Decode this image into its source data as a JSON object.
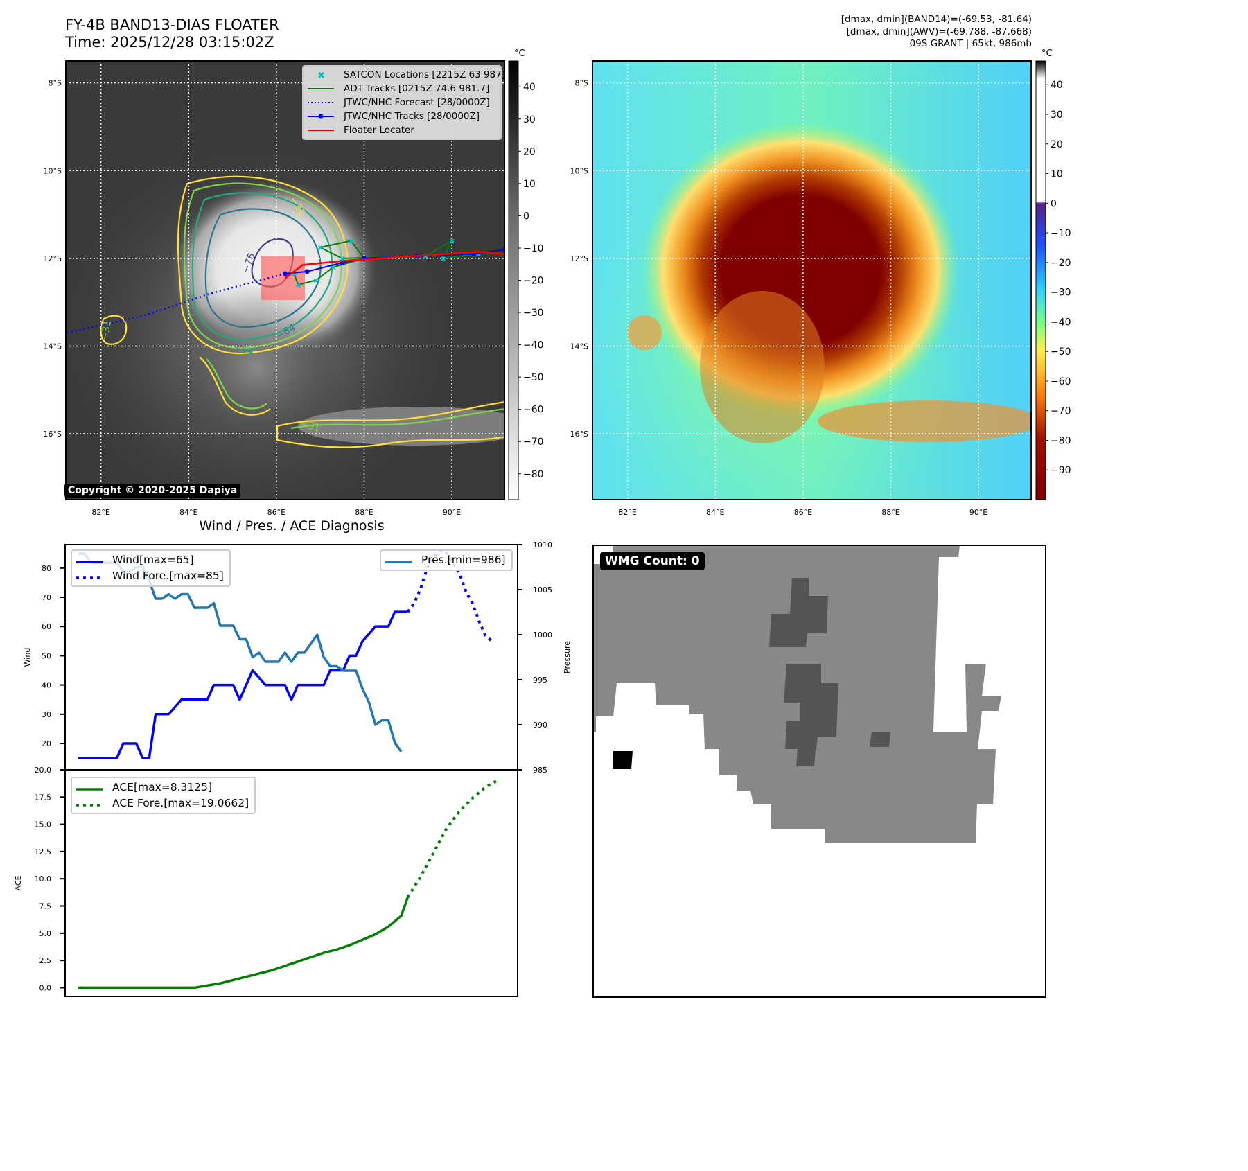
{
  "header": {
    "title": "FY-4B BAND13-DIAS FLOATER",
    "time": "Time: 2025/12/28 03:15:02Z",
    "stats": [
      "[dmax, dmin](BAND14)=(-69.53, -81.64)",
      "[dmax, dmin](AWV)=(-69.788, -87.668)",
      "09S.GRANT | 65kt, 986mb"
    ]
  },
  "colors": {
    "satcon": "#00c0c0",
    "adt": "#008000",
    "jtwc": "#0000ff",
    "floater": "#ff0000",
    "pres": "#1f77b4",
    "ace": "#008000"
  },
  "chart_data": [
    {
      "type": "heatmap",
      "name": "ir-grayscale-map",
      "colorbar_unit": "°C",
      "colorbar_ticks": [
        "40",
        "30",
        "20",
        "10",
        "0",
        "−10",
        "−20",
        "−30",
        "−40",
        "−50",
        "−60",
        "−70",
        "−80"
      ],
      "colorbar_range": [
        -88,
        48
      ],
      "lat_ticks": [
        "8°S",
        "10°S",
        "12°S",
        "14°S",
        "16°S"
      ],
      "lon_ticks": [
        "82°E",
        "84°E",
        "86°E",
        "88°E",
        "90°E"
      ],
      "xlim": [
        81.2,
        91.2
      ],
      "ylim": [
        -17.5,
        -7.5
      ],
      "contour_labels": [
        "−31",
        "−76",
        "−64",
        "−54",
        "−31",
        "−31"
      ],
      "legend": [
        {
          "label": "SATCON Locations [2215Z 63 987]",
          "marker": "x",
          "color_key": "satcon"
        },
        {
          "label": "ADT Tracks [0215Z 74.6 981.7]",
          "marker": "line",
          "color_key": "adt"
        },
        {
          "label": "JTWC/NHC Forecast [28/0000Z]",
          "marker": "dotted",
          "color_key": "jtwc"
        },
        {
          "label": "JTWC/NHC Tracks [28/0000Z]",
          "marker": "line-dot",
          "color_key": "jtwc"
        },
        {
          "label": "Floater Locater",
          "marker": "line",
          "color_key": "floater"
        }
      ],
      "jtwc_track": [
        [
          86.2,
          -12.35
        ],
        [
          86.7,
          -12.3
        ],
        [
          87.5,
          -12.1
        ],
        [
          88.0,
          -12.0
        ],
        [
          89.2,
          -11.95
        ],
        [
          90.5,
          -11.9
        ],
        [
          91.2,
          -11.8
        ]
      ],
      "jtwc_forecast": [
        [
          86.2,
          -12.35
        ],
        [
          84.5,
          -12.8
        ],
        [
          83.0,
          -13.3
        ],
        [
          81.2,
          -13.7
        ]
      ],
      "floater_track": [
        [
          86.2,
          -12.45
        ],
        [
          86.6,
          -12.15
        ],
        [
          87.6,
          -12.05
        ],
        [
          88.8,
          -11.97
        ],
        [
          90.6,
          -11.85
        ],
        [
          91.2,
          -11.9
        ]
      ],
      "adt_track": [
        [
          86.4,
          -12.35
        ],
        [
          86.5,
          -12.6
        ],
        [
          86.9,
          -12.5
        ],
        [
          87.3,
          -12.2
        ],
        [
          88.0,
          -12.0
        ],
        [
          87.7,
          -11.6
        ],
        [
          87.0,
          -11.75
        ],
        [
          87.5,
          -12.0
        ],
        [
          89.4,
          -11.95
        ],
        [
          90.0,
          -11.6
        ],
        [
          89.8,
          -12.0
        ],
        [
          90.6,
          -11.9
        ]
      ],
      "floater_box": {
        "lon": [
          85.65,
          86.65
        ],
        "lat": [
          -12.95,
          -11.95
        ]
      }
    },
    {
      "type": "heatmap",
      "name": "ir-color-map",
      "colorbar_unit": "°C",
      "colorbar_ticks": [
        "40",
        "30",
        "20",
        "10",
        "0",
        "−10",
        "−20",
        "−30",
        "−40",
        "−50",
        "−60",
        "−70",
        "−80",
        "−90"
      ],
      "colorbar_range": [
        -100,
        48
      ],
      "lat_ticks": [
        "8°S",
        "10°S",
        "12°S",
        "14°S",
        "16°S"
      ],
      "lon_ticks": [
        "82°E",
        "84°E",
        "86°E",
        "88°E",
        "90°E"
      ],
      "xlim": [
        81.2,
        91.2
      ],
      "ylim": [
        -17.5,
        -7.5
      ]
    },
    {
      "type": "line",
      "name": "wind-pressure",
      "title": "Wind / Pres. / ACE Diagnosis",
      "ylabel": "Wind",
      "y2label": "Pressure",
      "ylim": [
        11,
        88
      ],
      "y2lim": [
        985,
        1010
      ],
      "yticks": [
        "20",
        "30",
        "40",
        "50",
        "60",
        "70",
        "80"
      ],
      "y2ticks": [
        "985",
        "990",
        "995",
        "1000",
        "1005",
        "1010"
      ],
      "xlim": [
        0,
        70
      ],
      "series": [
        {
          "name": "Wind[max=65]",
          "color_key": "jtwc",
          "style": "solid",
          "x": [
            2,
            8,
            9,
            11,
            12,
            13,
            14,
            15,
            16,
            18,
            20,
            22,
            23,
            26,
            27,
            29,
            31,
            32,
            34,
            35,
            36,
            40,
            41,
            43,
            44,
            45,
            46,
            48,
            49,
            50,
            51,
            52,
            53
          ],
          "y": [
            15,
            15,
            20,
            20,
            15,
            15,
            30,
            30,
            30,
            35,
            35,
            35,
            40,
            40,
            35,
            45,
            40,
            40,
            40,
            35,
            40,
            40,
            45,
            45,
            50,
            50,
            55,
            60,
            60,
            60,
            65,
            65,
            65
          ]
        },
        {
          "name": "Wind Fore.[max=85]",
          "color_key": "jtwc",
          "style": "dotted",
          "x": [
            53,
            54,
            55,
            56,
            57,
            58,
            59,
            60,
            61,
            62,
            63,
            64,
            65,
            66
          ],
          "y": [
            65,
            68,
            73,
            80,
            84,
            86,
            85,
            82,
            78,
            72,
            68,
            62,
            57,
            55
          ]
        },
        {
          "name": "Pres.[min=986]",
          "color_key": "pres",
          "style": "solid",
          "axis": "y2",
          "x": [
            2,
            3,
            4,
            8,
            9,
            10,
            11,
            12,
            13,
            14,
            15,
            16,
            17,
            18,
            19,
            20,
            21,
            22,
            23,
            24,
            25,
            26,
            27,
            28,
            29,
            30,
            31,
            32,
            33,
            34,
            35,
            36,
            37,
            38,
            39,
            40,
            41,
            42,
            43,
            44,
            45,
            46,
            47,
            48,
            49,
            50,
            51,
            52
          ],
          "y": [
            1009,
            1009,
            1008,
            1008,
            1007,
            1007,
            1007.5,
            1007.5,
            1006,
            1004,
            1004,
            1004.5,
            1004,
            1004.5,
            1004.5,
            1003,
            1003,
            1003,
            1003.5,
            1001,
            1001,
            1001,
            999.5,
            999.5,
            997.5,
            998,
            997,
            997,
            997,
            998,
            997,
            998,
            998,
            999,
            1000,
            997.5,
            996.5,
            996.5,
            996,
            996,
            996,
            994,
            992.5,
            990,
            990.5,
            990.5,
            988,
            987
          ]
        }
      ]
    },
    {
      "type": "line",
      "name": "ace",
      "ylabel": "ACE",
      "ylim": [
        -0.8,
        20.0
      ],
      "yticks": [
        "0.0",
        "2.5",
        "5.0",
        "7.5",
        "10.0",
        "12.5",
        "15.0",
        "17.5",
        "20.0"
      ],
      "xlim": [
        0,
        70
      ],
      "series": [
        {
          "name": "ACE[max=8.3125]",
          "color_key": "ace",
          "style": "solid",
          "x": [
            2,
            8,
            14,
            18,
            20,
            24,
            26,
            28,
            30,
            32,
            34,
            36,
            38,
            40,
            42,
            44,
            46,
            48,
            50,
            52,
            53
          ],
          "y": [
            0,
            0,
            0,
            0,
            0,
            0.4,
            0.7,
            1.0,
            1.3,
            1.6,
            2.0,
            2.4,
            2.8,
            3.2,
            3.5,
            3.9,
            4.4,
            4.9,
            5.6,
            6.6,
            8.31
          ]
        },
        {
          "name": "ACE Fore.[max=19.0662]",
          "color_key": "ace",
          "style": "dotted",
          "x": [
            53,
            55,
            57,
            59,
            61,
            63,
            65,
            67
          ],
          "y": [
            8.31,
            10.2,
            12.4,
            14.6,
            16.2,
            17.4,
            18.4,
            19.07
          ]
        }
      ]
    },
    {
      "type": "heatmap",
      "name": "wmg-count-map",
      "annotation": "WMG Count: 0"
    }
  ],
  "watermark": "Copyright © 2020-2025 Dapiya",
  "legends": {
    "wind": [
      "Wind[max=65]",
      "Wind Fore.[max=85]"
    ],
    "pres": [
      "Pres.[min=986]"
    ],
    "ace": [
      "ACE[max=8.3125]",
      "ACE Fore.[max=19.0662]"
    ]
  }
}
